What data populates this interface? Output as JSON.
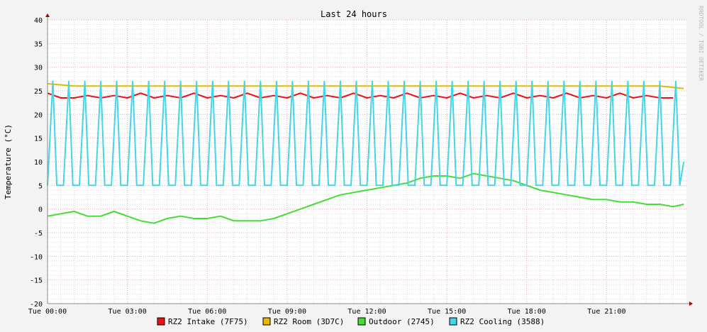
{
  "chart_data": {
    "type": "line",
    "title": "Last 24 hours",
    "ylabel": "Temperature (°C)",
    "xlabel": "",
    "watermark": "RRDTOOL / TOBI OETIKER",
    "ylim": [
      -20,
      40
    ],
    "xlim_hours": [
      0,
      24
    ],
    "yticks": [
      40,
      35,
      30,
      25,
      20,
      15,
      10,
      5,
      0,
      -5,
      -10,
      -15,
      -20
    ],
    "ytick_labels": [
      "40",
      "35",
      "30",
      "25",
      "20",
      "15",
      "10",
      "5",
      "0",
      "-5",
      "-10",
      "-15",
      "-20"
    ],
    "xtick_labels": [
      "Tue 00:00",
      "Tue 03:00",
      "Tue 06:00",
      "Tue 09:00",
      "Tue 12:00",
      "Tue 15:00",
      "Tue 18:00",
      "Tue 21:00"
    ],
    "grid": true,
    "legend_position": "bottom",
    "background": "#f3f3f3",
    "plot_background": "#ffffff",
    "major_grid_color": "#e8a6a6",
    "minor_grid_color": "#d9d9d9",
    "series": [
      {
        "name": "RZ2 Intake (7F75)",
        "color": "#ee1111",
        "x": [
          0,
          0.5,
          1,
          1.5,
          2,
          2.5,
          3,
          3.5,
          4,
          4.5,
          5,
          5.5,
          6,
          6.5,
          7,
          7.5,
          8,
          8.5,
          9,
          9.5,
          10,
          10.5,
          11,
          11.5,
          12,
          12.5,
          13,
          13.5,
          14,
          14.5,
          15,
          15.5,
          16,
          16.5,
          17,
          17.5,
          18,
          18.5,
          19,
          19.5,
          20,
          20.5,
          21,
          21.5,
          22,
          22.5,
          23,
          23.5
        ],
        "y": [
          24.5,
          23.5,
          23.5,
          24,
          23.5,
          24,
          23.5,
          24.5,
          23.5,
          24,
          23.5,
          24.5,
          23.5,
          24,
          23.5,
          24.5,
          23.5,
          24,
          23.5,
          24.5,
          23.5,
          24,
          23.5,
          24.5,
          23.5,
          24,
          23.5,
          24.5,
          23.5,
          24,
          23.5,
          24.5,
          23.5,
          24,
          23.5,
          24.5,
          23.5,
          24,
          23.5,
          24.5,
          23.5,
          24,
          23.5,
          24.5,
          23.5,
          24,
          23.5,
          23.5
        ]
      },
      {
        "name": "RZ2 Room (3D7C)",
        "color": "#e6b800",
        "x": [
          0,
          1,
          2,
          3,
          4,
          5,
          6,
          7,
          8,
          9,
          10,
          11,
          12,
          13,
          14,
          15,
          16,
          17,
          18,
          19,
          20,
          21,
          22,
          23,
          23.9
        ],
        "y": [
          26.5,
          26,
          26,
          26,
          26,
          26,
          26,
          26,
          26,
          26,
          26,
          26,
          26,
          26,
          26,
          26,
          26,
          26,
          26,
          26,
          26,
          26,
          26,
          26,
          25.5
        ]
      },
      {
        "name": "Outdoor (2745)",
        "color": "#44dd33",
        "x": [
          0,
          0.5,
          1,
          1.5,
          2,
          2.5,
          3,
          3.5,
          4,
          4.5,
          5,
          5.5,
          6,
          6.5,
          7,
          7.5,
          8,
          8.5,
          9,
          9.5,
          10,
          10.5,
          11,
          11.5,
          12,
          12.5,
          13,
          13.5,
          14,
          14.5,
          15,
          15.5,
          16,
          16.5,
          17,
          17.5,
          18,
          18.5,
          19,
          19.5,
          20,
          20.5,
          21,
          21.5,
          22,
          22.5,
          23,
          23.5,
          23.9
        ],
        "y": [
          -1.5,
          -1,
          -0.5,
          -1.5,
          -1.5,
          -0.5,
          -1.5,
          -2.5,
          -3,
          -2,
          -1.5,
          -2,
          -2,
          -1.5,
          -2.5,
          -2.5,
          -2.5,
          -2,
          -1,
          0,
          1,
          2,
          3,
          3.5,
          4,
          4.5,
          5,
          5.5,
          6.5,
          7,
          7,
          6.5,
          7.5,
          7,
          6.5,
          6,
          5,
          4,
          3.5,
          3,
          2.5,
          2,
          2,
          1.5,
          1.5,
          1,
          1,
          0.5,
          1
        ]
      },
      {
        "name": "RZ2 Cooling (3588)",
        "color": "#44d5e6",
        "x": [
          0,
          0.2,
          0.35,
          0.6,
          0.8,
          0.95,
          1.2,
          1.4,
          1.55,
          1.8,
          2,
          2.15,
          2.4,
          2.6,
          2.75,
          3,
          3.2,
          3.35,
          3.6,
          3.8,
          3.95,
          4.2,
          4.4,
          4.55,
          4.8,
          5,
          5.15,
          5.4,
          5.6,
          5.75,
          6,
          6.2,
          6.35,
          6.6,
          6.8,
          6.95,
          7.2,
          7.4,
          7.55,
          7.8,
          8,
          8.15,
          8.4,
          8.6,
          8.75,
          9,
          9.2,
          9.35,
          9.6,
          9.8,
          9.95,
          10.2,
          10.4,
          10.55,
          10.8,
          11,
          11.15,
          11.4,
          11.6,
          11.75,
          12,
          12.2,
          12.35,
          12.6,
          12.8,
          12.95,
          13.2,
          13.4,
          13.55,
          13.8,
          14,
          14.15,
          14.4,
          14.6,
          14.75,
          15,
          15.2,
          15.35,
          15.6,
          15.8,
          15.95,
          16.2,
          16.4,
          16.55,
          16.8,
          17,
          17.15,
          17.4,
          17.6,
          17.75,
          18,
          18.2,
          18.35,
          18.6,
          18.8,
          18.95,
          19.2,
          19.4,
          19.55,
          19.8,
          20,
          20.15,
          20.4,
          20.6,
          20.75,
          21,
          21.2,
          21.35,
          21.6,
          21.8,
          21.95,
          22.2,
          22.4,
          22.55,
          22.8,
          23,
          23.15,
          23.4,
          23.6,
          23.75,
          23.9
        ],
        "y": [
          5,
          27,
          5,
          5,
          27,
          5,
          5,
          27,
          5,
          5,
          27,
          5,
          5,
          27,
          5,
          5,
          27,
          5,
          5,
          27,
          5,
          5,
          27,
          5,
          5,
          27,
          5,
          5,
          27,
          5,
          5,
          27,
          5,
          5,
          27,
          5,
          5,
          27,
          5,
          5,
          27,
          5,
          5,
          27,
          5,
          5,
          27,
          5,
          5,
          27,
          5,
          5,
          27,
          5,
          5,
          27,
          5,
          5,
          27,
          5,
          5,
          27,
          5,
          5,
          27,
          5,
          5,
          27,
          5,
          5,
          27,
          5,
          5,
          27,
          5,
          5,
          27,
          5,
          5,
          27,
          5,
          5,
          27,
          5,
          5,
          27,
          5,
          5,
          27,
          5,
          5,
          27,
          5,
          5,
          27,
          5,
          5,
          27,
          5,
          5,
          27,
          5,
          5,
          27,
          5,
          5,
          27,
          5,
          5,
          27,
          5,
          5,
          27,
          5,
          5,
          27,
          5,
          5,
          27,
          5,
          10
        ]
      }
    ]
  }
}
